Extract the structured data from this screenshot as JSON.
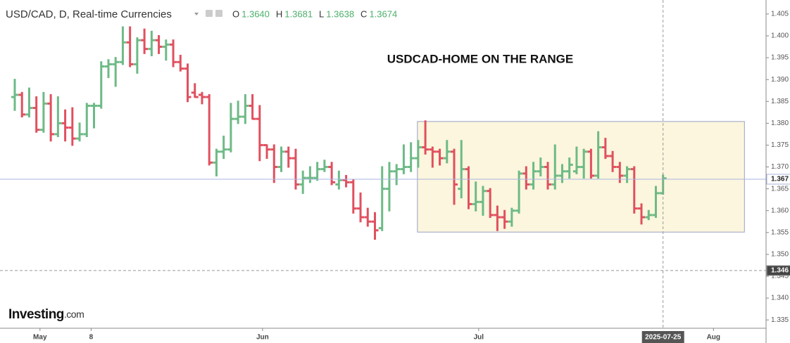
{
  "chart_data": {
    "type": "ohlc",
    "title": "USD/CAD, D, Real-time Currencies",
    "legend_ohlc": [
      {
        "letter": "O",
        "text": "1.3640"
      },
      {
        "letter": "H",
        "text": "1.3681"
      },
      {
        "letter": "L",
        "text": "1.3638"
      },
      {
        "letter": "C",
        "text": "1.3674"
      }
    ],
    "annotation": "USDCAD-HOME ON THE RANGE",
    "logo": [
      "Investing",
      ".com"
    ],
    "up_color": "#6dba86",
    "down_color": "#e0505f",
    "open": [
      1.386,
      1.3865,
      1.382,
      1.3835,
      1.3785,
      1.3845,
      1.3775,
      1.38,
      1.379,
      1.3765,
      1.3775,
      1.384,
      1.384,
      1.393,
      1.3935,
      1.394,
      1.3985,
      1.3935,
      1.399,
      1.397,
      1.399,
      1.3975,
      1.398,
      1.394,
      1.3925,
      1.387,
      1.3865,
      1.386,
      1.371,
      1.3735,
      1.374,
      1.381,
      1.3815,
      1.384,
      1.381,
      1.375,
      1.374,
      1.37,
      1.3735,
      1.372,
      1.366,
      1.3675,
      1.3675,
      1.3695,
      1.37,
      1.366,
      1.367,
      1.3665,
      1.3605,
      1.3585,
      1.3575,
      1.356,
      1.365,
      1.369,
      1.3695,
      1.37,
      1.372,
      1.3745,
      1.374,
      1.3735,
      1.372,
      1.3735,
      1.365,
      1.3695,
      1.3615,
      1.362,
      1.3645,
      1.359,
      1.3585,
      1.3575,
      1.36,
      1.3685,
      1.366,
      1.369,
      1.37,
      1.366,
      1.368,
      1.369,
      1.369,
      1.37,
      1.3735,
      1.368,
      1.3745,
      1.3725,
      1.37,
      1.368,
      1.3695,
      1.3605,
      1.3585,
      1.359,
      1.364
    ],
    "high": [
      1.39,
      1.387,
      1.388,
      1.386,
      1.387,
      1.3865,
      1.386,
      1.383,
      1.3835,
      1.38,
      1.3845,
      1.3845,
      1.394,
      1.3945,
      1.395,
      1.402,
      1.402,
      1.3995,
      1.4015,
      1.401,
      1.4,
      1.399,
      1.399,
      1.3955,
      1.3935,
      1.389,
      1.387,
      1.3865,
      1.374,
      1.377,
      1.3845,
      1.385,
      1.3865,
      1.3865,
      1.384,
      1.375,
      1.375,
      1.3745,
      1.3745,
      1.374,
      1.369,
      1.37,
      1.371,
      1.3715,
      1.371,
      1.369,
      1.368,
      1.367,
      1.364,
      1.3605,
      1.3595,
      1.37,
      1.371,
      1.3705,
      1.375,
      1.3755,
      1.376,
      1.3805,
      1.3745,
      1.374,
      1.376,
      1.374,
      1.376,
      1.37,
      1.3665,
      1.3655,
      1.365,
      1.361,
      1.36,
      1.3605,
      1.369,
      1.37,
      1.371,
      1.372,
      1.371,
      1.375,
      1.3705,
      1.372,
      1.3745,
      1.374,
      1.374,
      1.378,
      1.3765,
      1.3735,
      1.371,
      1.37,
      1.37,
      1.3615,
      1.36,
      1.3655,
      1.3681
    ],
    "low": [
      1.383,
      1.3815,
      1.3815,
      1.378,
      1.378,
      1.376,
      1.377,
      1.376,
      1.375,
      1.376,
      1.377,
      1.379,
      1.3835,
      1.3905,
      1.3885,
      1.3935,
      1.393,
      1.3915,
      1.396,
      1.3955,
      1.396,
      1.3945,
      1.393,
      1.392,
      1.385,
      1.386,
      1.3845,
      1.3705,
      1.368,
      1.372,
      1.3735,
      1.38,
      1.38,
      1.381,
      1.3715,
      1.372,
      1.3665,
      1.369,
      1.37,
      1.365,
      1.364,
      1.3665,
      1.367,
      1.369,
      1.366,
      1.365,
      1.3655,
      1.3595,
      1.3575,
      1.3565,
      1.3535,
      1.3555,
      1.36,
      1.366,
      1.3685,
      1.369,
      1.37,
      1.373,
      1.37,
      1.3705,
      1.371,
      1.3615,
      1.363,
      1.3605,
      1.36,
      1.359,
      1.3585,
      1.3555,
      1.356,
      1.3565,
      1.3595,
      1.365,
      1.365,
      1.368,
      1.365,
      1.365,
      1.3665,
      1.3675,
      1.3685,
      1.3675,
      1.3675,
      1.3675,
      1.372,
      1.369,
      1.3665,
      1.3665,
      1.3595,
      1.357,
      1.358,
      1.3585,
      1.3638
    ],
    "close": [
      1.3865,
      1.382,
      1.3835,
      1.3785,
      1.3845,
      1.3775,
      1.38,
      1.379,
      1.3765,
      1.3775,
      1.384,
      1.384,
      1.393,
      1.3935,
      1.394,
      1.3985,
      1.3935,
      1.399,
      1.397,
      1.399,
      1.3975,
      1.398,
      1.394,
      1.3925,
      1.386,
      1.386,
      1.386,
      1.371,
      1.3735,
      1.374,
      1.381,
      1.3815,
      1.384,
      1.381,
      1.375,
      1.374,
      1.37,
      1.3735,
      1.372,
      1.366,
      1.3675,
      1.3675,
      1.3695,
      1.37,
      1.3665,
      1.367,
      1.3665,
      1.3605,
      1.3585,
      1.3575,
      1.3555,
      1.365,
      1.369,
      1.3695,
      1.37,
      1.372,
      1.3745,
      1.374,
      1.3735,
      1.372,
      1.3735,
      1.366,
      1.3695,
      1.3615,
      1.362,
      1.3645,
      1.359,
      1.3585,
      1.3575,
      1.36,
      1.3685,
      1.366,
      1.369,
      1.37,
      1.366,
      1.368,
      1.369,
      1.3705,
      1.37,
      1.3735,
      1.368,
      1.3745,
      1.3725,
      1.37,
      1.368,
      1.3695,
      1.3605,
      1.3585,
      1.359,
      1.364,
      1.3674
    ],
    "xlim": [
      -2.05,
      104.3
    ],
    "xticks": [
      {
        "value": 3.5,
        "label": "May"
      },
      {
        "value": 10.6,
        "label": "8"
      },
      {
        "value": 34.4,
        "label": "Jun"
      },
      {
        "value": 64.4,
        "label": "Jul"
      },
      {
        "value": 97,
        "label": "Aug"
      }
    ],
    "crosshair": {
      "x": 90,
      "label": "2025-07-25"
    },
    "ylim": [
      1.3331,
      1.4082
    ],
    "yticks": [
      1.335,
      {
        "value": 1.34,
        "label": "1.340"
      },
      1.345,
      {
        "value": 1.35,
        "label": "1.350"
      },
      1.355,
      {
        "value": 1.36,
        "label": "1.360"
      },
      1.365,
      {
        "value": 1.37,
        "label": "1.370"
      },
      1.375,
      {
        "value": 1.38,
        "label": "1.380"
      },
      1.385,
      {
        "value": 1.39,
        "label": "1.390"
      },
      1.395,
      {
        "value": 1.4,
        "label": "1.400"
      },
      1.405
    ],
    "price_lines": [
      {
        "value": 1.3672,
        "label": "1.367",
        "style": "solid",
        "color": "#a9b4e0",
        "label_bg": "#ffffff",
        "label_color": "#222222"
      },
      {
        "value": 1.3463,
        "label": "1.346",
        "style": "dashed",
        "color": "#999999",
        "label_bg": "#444444",
        "label_color": "#ffffff"
      }
    ],
    "range_box": {
      "x": [
        55.9,
        101.3
      ],
      "y": [
        1.3551,
        1.3804
      ],
      "fill": "#fbf6dd",
      "stroke": "#9aa0c4"
    }
  }
}
